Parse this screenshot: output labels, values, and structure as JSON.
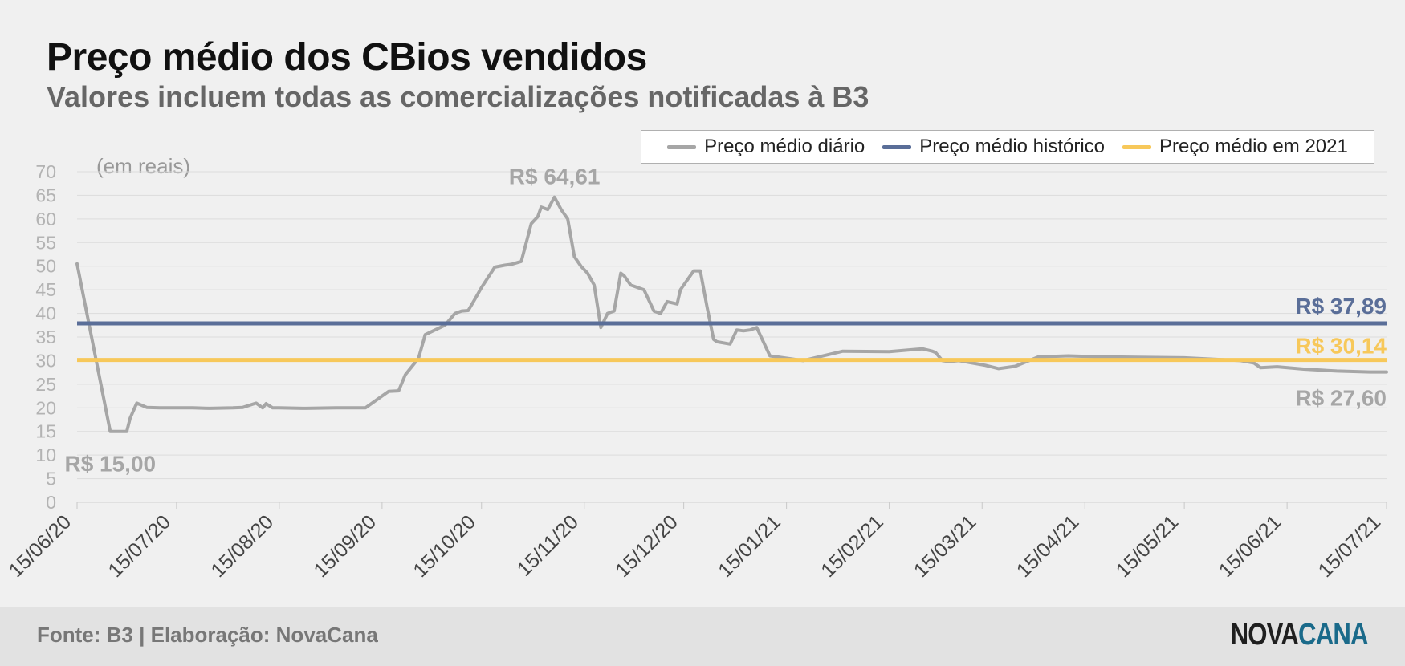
{
  "title": "Preço médio dos CBios vendidos",
  "subtitle": "Valores incluem todas as comercializações notificadas à B3",
  "unit_note": "(em reais)",
  "footer": {
    "source": "Fonte: B3 | Elaboração: NovaCana",
    "logo_part1": "NOVA",
    "logo_part2": "CANA"
  },
  "legend": [
    {
      "label": "Preço médio diário",
      "color": "#a6a6a6"
    },
    {
      "label": "Preço médio histórico",
      "color": "#5a6e98"
    },
    {
      "label": "Preço médio em 2021",
      "color": "#f7c85a"
    }
  ],
  "chart_data": {
    "type": "line",
    "title": "Preço médio dos CBios vendidos",
    "subtitle": "Valores incluem todas as comercializações notificadas à B3",
    "ylabel": "(em reais)",
    "ylim": [
      0,
      70
    ],
    "yticks": [
      0,
      5,
      10,
      15,
      20,
      25,
      30,
      35,
      40,
      45,
      50,
      55,
      60,
      65,
      70
    ],
    "xlim": [
      "2020-06-15",
      "2021-07-15"
    ],
    "xticks": [
      "15/06/20",
      "15/07/20",
      "15/08/20",
      "15/09/20",
      "15/10/20",
      "15/11/20",
      "15/12/20",
      "15/01/21",
      "15/02/21",
      "15/03/21",
      "15/04/21",
      "15/05/21",
      "15/06/21",
      "15/07/21"
    ],
    "grid": true,
    "legend_position": "top-right",
    "series": [
      {
        "name": "Preço médio diário",
        "color": "#a6a6a6",
        "x": [
          "2020-06-15",
          "2020-06-25",
          "2020-06-26",
          "2020-06-30",
          "2020-07-01",
          "2020-07-03",
          "2020-07-06",
          "2020-07-10",
          "2020-07-20",
          "2020-07-25",
          "2020-08-01",
          "2020-08-04",
          "2020-08-08",
          "2020-08-10",
          "2020-08-11",
          "2020-08-13",
          "2020-08-15",
          "2020-08-22",
          "2020-09-01",
          "2020-09-10",
          "2020-09-14",
          "2020-09-17",
          "2020-09-20",
          "2020-09-22",
          "2020-09-26",
          "2020-09-28",
          "2020-10-01",
          "2020-10-04",
          "2020-10-07",
          "2020-10-09",
          "2020-10-11",
          "2020-10-13",
          "2020-10-15",
          "2020-10-19",
          "2020-10-22",
          "2020-10-24",
          "2020-10-27",
          "2020-10-30",
          "2020-11-01",
          "2020-11-02",
          "2020-11-04",
          "2020-11-06",
          "2020-11-08",
          "2020-11-10",
          "2020-11-12",
          "2020-11-14",
          "2020-11-16",
          "2020-11-18",
          "2020-11-20",
          "2020-11-22",
          "2020-11-24",
          "2020-11-26",
          "2020-11-27",
          "2020-11-29",
          "2020-12-03",
          "2020-12-06",
          "2020-12-08",
          "2020-12-10",
          "2020-12-13",
          "2020-12-14",
          "2020-12-18",
          "2020-12-20",
          "2020-12-22",
          "2020-12-24",
          "2020-12-25",
          "2020-12-29",
          "2020-12-31",
          "2021-01-02",
          "2021-01-04",
          "2021-01-06",
          "2021-01-10",
          "2021-01-20",
          "2021-02-01",
          "2021-02-15",
          "2021-02-25",
          "2021-02-28",
          "2021-03-01",
          "2021-03-03",
          "2021-03-05",
          "2021-03-08",
          "2021-03-12",
          "2021-03-16",
          "2021-03-20",
          "2021-03-25",
          "2021-04-01",
          "2021-04-10",
          "2021-04-20",
          "2021-05-01",
          "2021-05-15",
          "2021-06-01",
          "2021-06-05",
          "2021-06-07",
          "2021-06-12",
          "2021-06-20",
          "2021-06-30",
          "2021-07-10",
          "2021-07-15"
        ],
        "values": [
          50.5,
          15.0,
          15.0,
          15.0,
          17.8,
          21.0,
          20.1,
          20.0,
          20.0,
          19.9,
          20.0,
          20.1,
          21.0,
          20.0,
          20.9,
          20.0,
          20.0,
          19.9,
          20.0,
          20.0,
          22.0,
          23.5,
          23.6,
          27.0,
          30.5,
          35.5,
          36.5,
          37.5,
          40.0,
          40.5,
          40.6,
          43.0,
          45.5,
          49.8,
          50.2,
          50.4,
          51.0,
          59.0,
          60.5,
          62.5,
          62.0,
          64.61,
          62.0,
          60.0,
          52.0,
          50.0,
          48.5,
          46.0,
          37.0,
          40.0,
          40.5,
          48.5,
          48.0,
          46.0,
          45.0,
          40.5,
          40.0,
          42.5,
          42.0,
          45.0,
          49.0,
          49.0,
          41.5,
          34.5,
          34.0,
          33.5,
          36.5,
          36.3,
          36.5,
          37.0,
          31.0,
          30.0,
          32.0,
          31.9,
          32.5,
          32.0,
          31.7,
          30.0,
          29.8,
          30.0,
          29.5,
          29.0,
          28.3,
          28.8,
          30.8,
          31.0,
          30.8,
          30.7,
          30.6,
          30.0,
          29.5,
          28.5,
          28.7,
          28.2,
          27.8,
          27.6,
          27.6
        ]
      },
      {
        "name": "Preço médio histórico",
        "color": "#5a6e98",
        "value": 37.89,
        "label": "R$ 37,89"
      },
      {
        "name": "Preço médio em 2021",
        "color": "#f7c85a",
        "value": 30.14,
        "label": "R$ 30,14"
      }
    ],
    "annotations": [
      {
        "text": "R$ 64,61",
        "x": "2020-11-06",
        "y": 64.61,
        "color": "#a6a6a6"
      },
      {
        "text": "R$ 15,00",
        "x": "2020-06-25",
        "y": 15.0,
        "color": "#a6a6a6"
      },
      {
        "text": "R$ 37,89",
        "x": "2021-07-15",
        "y": 37.89,
        "color": "#5a6e98"
      },
      {
        "text": "R$ 30,14",
        "x": "2021-07-15",
        "y": 30.14,
        "color": "#f7c85a"
      },
      {
        "text": "R$ 27,60",
        "x": "2021-07-15",
        "y": 27.6,
        "color": "#a6a6a6"
      }
    ]
  }
}
